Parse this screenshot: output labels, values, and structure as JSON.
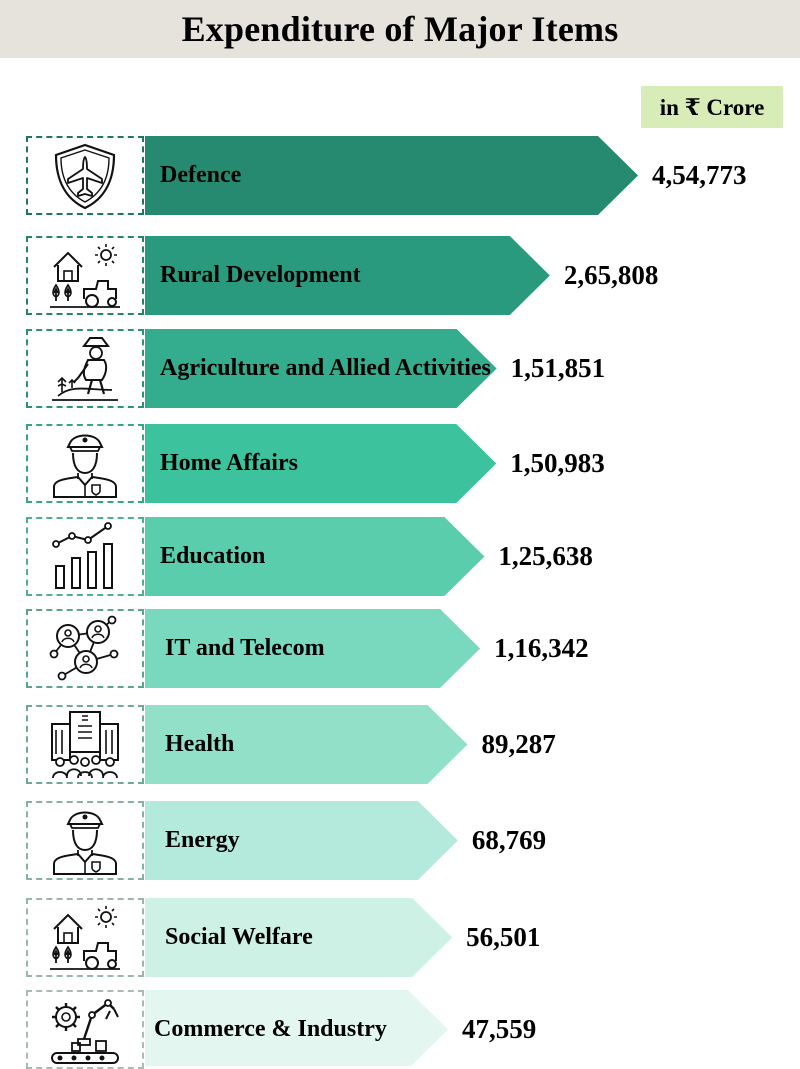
{
  "title": "Expenditure of Major Items",
  "unit": "in ₹ Crore",
  "chart_data": {
    "type": "bar",
    "orientation": "horizontal",
    "title": "Expenditure of Major Items",
    "unit": "in ₹ Crore",
    "categories": [
      "Defence",
      "Rural Development",
      "Agriculture and Allied Activities",
      "Home Affairs",
      "Education",
      "IT and Telecom",
      "Health",
      "Energy",
      "Social Welfare",
      "Commerce & Industry"
    ],
    "values": [
      454773,
      265808,
      151851,
      150983,
      125638,
      116342,
      89287,
      68769,
      56501,
      47559
    ],
    "value_labels": [
      "4,54,773",
      "2,65,808",
      "1,51,851",
      "1,50,983",
      "1,25,638",
      "1,16,342",
      "89,287",
      "68,769",
      "56,501",
      "47,559"
    ],
    "icons": [
      "shield-jet-icon",
      "farm-tractor-icon",
      "farmer-planting-icon",
      "police-officer-icon",
      "growth-bar-chart-icon",
      "network-people-icon",
      "hospital-crowd-icon",
      "police-officer-icon",
      "farm-tractor-icon",
      "robot-arm-factory-icon"
    ],
    "colors": [
      "#268a71",
      "#2a9a7e",
      "#33ad8d",
      "#3cc39e",
      "#5acdad",
      "#79d9bf",
      "#93e0c9",
      "#b4eadb",
      "#cdf1e4",
      "#e3f6ef"
    ],
    "legend": "none",
    "grid": false
  }
}
